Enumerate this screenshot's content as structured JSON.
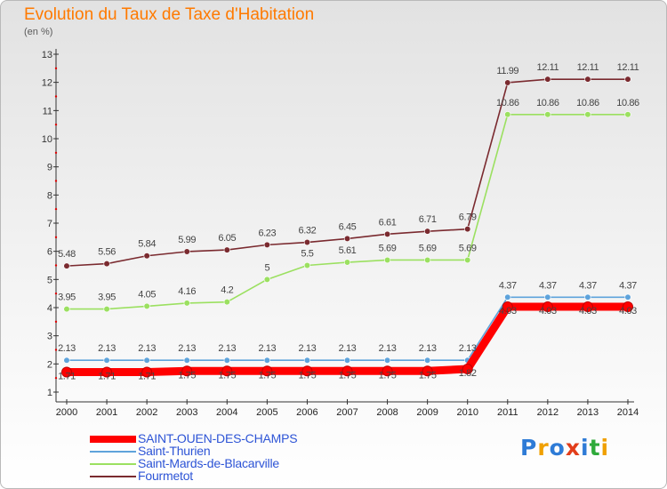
{
  "title": "Evolution du Taux de Taxe d'Habitation",
  "unit": "(en %)",
  "logo": {
    "text": "Proxiti",
    "colors": [
      "#2e7bd6",
      "#f0a000",
      "#2e7bd6",
      "#e23d1a",
      "#2e7bd6",
      "#2eaa3a",
      "#f0a000"
    ]
  },
  "chart_data": {
    "type": "line",
    "title": "Evolution du Taux de Taxe d'Habitation",
    "ylabel": "(en %)",
    "xlabel": "",
    "x": [
      "2000",
      "2001",
      "2002",
      "2003",
      "2004",
      "2005",
      "2006",
      "2007",
      "2008",
      "2009",
      "2010",
      "2011",
      "2012",
      "2013",
      "2014"
    ],
    "ylim": [
      1,
      13
    ],
    "yticks": [
      1,
      2,
      3,
      4,
      5,
      6,
      7,
      8,
      9,
      10,
      11,
      12,
      13
    ],
    "grid": false,
    "legend_position": "bottom-left",
    "series": [
      {
        "name": "SAINT-OUEN-DES-CHAMPS",
        "color": "#ff0000",
        "values": [
          1.71,
          1.71,
          1.71,
          1.75,
          1.75,
          1.75,
          1.75,
          1.75,
          1.75,
          1.75,
          1.82,
          4.03,
          4.03,
          4.03,
          4.03
        ],
        "labels": [
          "1.71",
          "1.71",
          "1.71",
          "1.75",
          "1.75",
          "1.75",
          "1.75",
          "1.75",
          "1.75",
          "1.75",
          "1.82",
          "4.03",
          "4.03",
          "4.03",
          "4.03"
        ]
      },
      {
        "name": "Saint-Thurien",
        "color": "#5ea3db",
        "values": [
          2.13,
          2.13,
          2.13,
          2.13,
          2.13,
          2.13,
          2.13,
          2.13,
          2.13,
          2.13,
          2.13,
          4.37,
          4.37,
          4.37,
          4.37
        ],
        "labels": [
          "2.13",
          "2.13",
          "2.13",
          "2.13",
          "2.13",
          "2.13",
          "2.13",
          "2.13",
          "2.13",
          "2.13",
          "2.13",
          "4.37",
          "4.37",
          "4.37",
          "4.37"
        ]
      },
      {
        "name": "Saint-Mards-de-Blacarville",
        "color": "#9be060",
        "values": [
          3.95,
          3.95,
          4.05,
          4.16,
          4.2,
          5,
          5.5,
          5.61,
          5.69,
          5.69,
          5.69,
          10.86,
          10.86,
          10.86,
          10.86
        ],
        "labels": [
          "3.95",
          "3.95",
          "4.05",
          "4.16",
          "4.2",
          "5",
          "5.5",
          "5.61",
          "5.69",
          "5.69",
          "5.69",
          "10.86",
          "10.86",
          "10.86",
          "10.86"
        ]
      },
      {
        "name": "Fourmetot",
        "color": "#7a2a2f",
        "values": [
          5.48,
          5.56,
          5.84,
          5.99,
          6.05,
          6.23,
          6.32,
          6.45,
          6.61,
          6.71,
          6.79,
          11.99,
          12.11,
          12.11,
          12.11
        ],
        "labels": [
          "5.48",
          "5.56",
          "5.84",
          "5.99",
          "6.05",
          "6.23",
          "6.32",
          "6.45",
          "6.61",
          "6.71",
          "6.79",
          "11.99",
          "12.11",
          "12.11",
          "12.11"
        ]
      }
    ]
  }
}
